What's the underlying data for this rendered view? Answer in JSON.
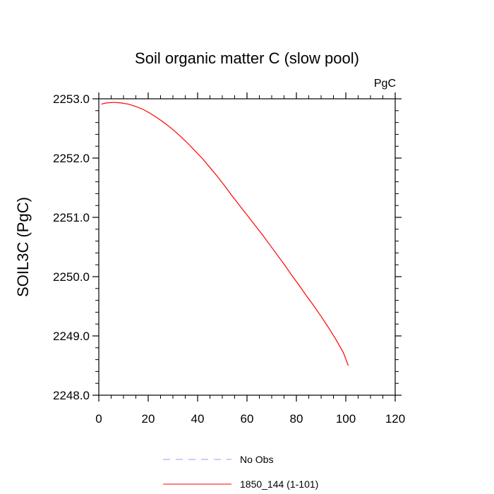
{
  "chart_data": {
    "type": "line",
    "title": "Soil organic matter C (slow pool)",
    "units_label": "PgC",
    "ylabel": "SOIL3C  (PgC)",
    "xlabel": "",
    "xlim": [
      0,
      120
    ],
    "ylim": [
      2248.0,
      2253.0
    ],
    "x_ticks": [
      0,
      20,
      40,
      60,
      80,
      100,
      120
    ],
    "x_tick_labels": [
      "0",
      "20",
      "40",
      "60",
      "80",
      "100",
      "120"
    ],
    "y_ticks": [
      2248.0,
      2249.0,
      2250.0,
      2251.0,
      2252.0,
      2253.0
    ],
    "y_tick_labels": [
      "2248.0",
      "2249.0",
      "2250.0",
      "2251.0",
      "2252.0",
      "2253.0"
    ],
    "x_minor_step": 5,
    "y_minor_step": 0.2,
    "grid": false,
    "legend_position": "bottom",
    "series": [
      {
        "name": "1850_144 (1-101)",
        "color": "#ff0000",
        "style": "solid",
        "x": [
          1,
          3,
          6,
          9,
          12,
          15,
          18,
          21,
          24,
          27,
          30,
          33,
          36,
          39,
          42,
          45,
          48,
          51,
          54,
          57,
          60,
          63,
          66,
          69,
          72,
          75,
          78,
          81,
          84,
          87,
          90,
          93,
          96,
          99,
          101
        ],
        "y": [
          2252.91,
          2252.93,
          2252.94,
          2252.93,
          2252.91,
          2252.87,
          2252.82,
          2252.75,
          2252.67,
          2252.58,
          2252.48,
          2252.37,
          2252.25,
          2252.12,
          2251.99,
          2251.84,
          2251.69,
          2251.53,
          2251.36,
          2251.2,
          2251.04,
          2250.88,
          2250.72,
          2250.55,
          2250.38,
          2250.21,
          2250.03,
          2249.86,
          2249.68,
          2249.51,
          2249.33,
          2249.14,
          2248.94,
          2248.72,
          2248.5
        ]
      }
    ],
    "legend": [
      {
        "label": "No Obs",
        "color": "#9999ff",
        "style": "dashed"
      },
      {
        "label": "1850_144 (1-101)",
        "color": "#ff0000",
        "style": "solid"
      }
    ]
  }
}
